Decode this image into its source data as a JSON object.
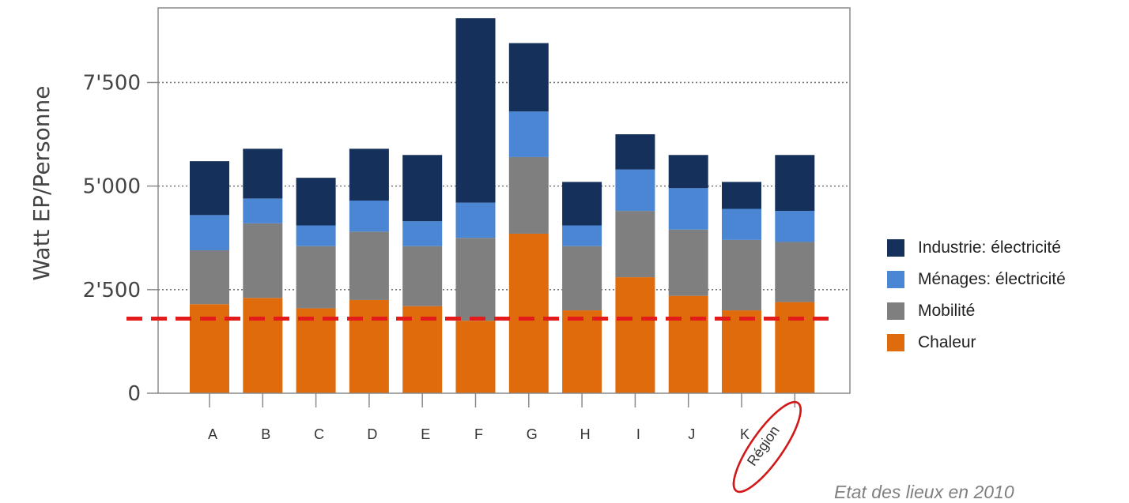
{
  "chart_data": {
    "type": "bar",
    "stacked": true,
    "ylabel": "Watt EP/Personne",
    "xlabel": "",
    "ylim": [
      0,
      9300
    ],
    "yticks": [
      0,
      2500,
      5000,
      7500
    ],
    "ytick_labels": [
      "0",
      "2'500",
      "5'000",
      "7'500"
    ],
    "grid": "horizontal dotted",
    "categories": [
      "A",
      "B",
      "C",
      "D",
      "E",
      "F",
      "G",
      "H",
      "I",
      "J",
      "K",
      "Région"
    ],
    "series": [
      {
        "name": "Chaleur",
        "color": "#e06b0c",
        "values": [
          2150,
          2300,
          2050,
          2250,
          2100,
          1750,
          3850,
          2000,
          2800,
          2350,
          2000,
          2200
        ]
      },
      {
        "name": "Mobilité",
        "color": "#7f7f7f",
        "values": [
          1300,
          1800,
          1500,
          1650,
          1450,
          2000,
          1850,
          1550,
          1600,
          1600,
          1700,
          1450
        ]
      },
      {
        "name": "Ménages: électricité",
        "color": "#4a86d4",
        "values": [
          850,
          600,
          500,
          750,
          600,
          850,
          1100,
          500,
          1000,
          1000,
          750,
          750
        ]
      },
      {
        "name": "Industrie: électricité",
        "color": "#15305a",
        "values": [
          1300,
          1200,
          1150,
          1250,
          1600,
          4450,
          1650,
          1050,
          850,
          800,
          650,
          1350
        ]
      }
    ],
    "reference_line": {
      "value": 1800,
      "color": "#e31b1b",
      "style": "dashed"
    },
    "highlighted_category": "Région",
    "highlight_color": "#d11919",
    "legend_position": "right",
    "footnote": "Etat des lieux en 2010"
  }
}
